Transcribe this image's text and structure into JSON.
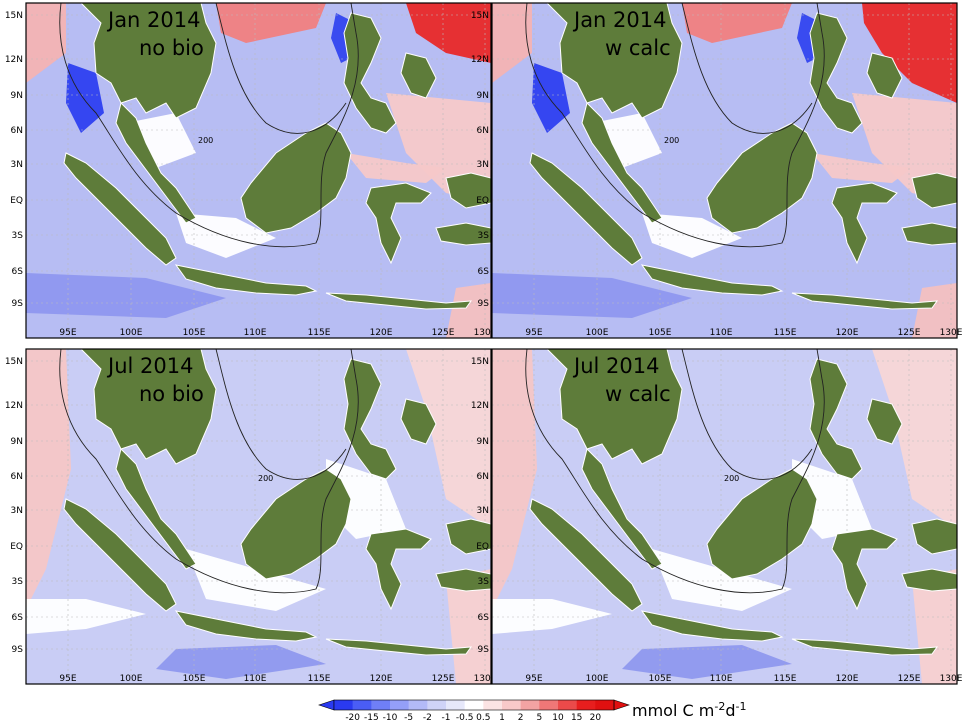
{
  "panels": [
    {
      "id": "jan-nobio",
      "month": "Jan 2014",
      "run": "no bio"
    },
    {
      "id": "jan-wcalc",
      "month": "Jan 2014",
      "run": "w calc"
    },
    {
      "id": "jul-nobio",
      "month": "Jul 2014",
      "run": "no bio"
    },
    {
      "id": "jul-wcalc",
      "month": "Jul 2014",
      "run": "w calc"
    }
  ],
  "lat_ticks": [
    "15N",
    "12N",
    "9N",
    "6N",
    "3N",
    "EQ",
    "3S",
    "6S",
    "9S"
  ],
  "lon_ticks": [
    "95E",
    "100E",
    "105E",
    "110E",
    "115E",
    "120E",
    "125E",
    "130E"
  ],
  "contour_label": "200",
  "colorbar": {
    "ticks": [
      "-20",
      "-15",
      "-10",
      "-5",
      "-2",
      "-1",
      "-0.5",
      "0.5",
      "1",
      "2",
      "5",
      "10",
      "15",
      "20"
    ],
    "unit_main": "mmol C m",
    "unit_exp1": "-2",
    "unit_mid": "d",
    "unit_exp2": "-1",
    "colors": [
      "#2a3af0",
      "#4a5df5",
      "#6f7ff7",
      "#949ff8",
      "#b3baf7",
      "#cfd3f7",
      "#e6e8fa",
      "#ffffff",
      "#fbe3e3",
      "#f8c9c9",
      "#f3a3a3",
      "#ef7777",
      "#eb4a4a",
      "#e81e1e",
      "#e01010"
    ]
  },
  "colors": {
    "land": "#5e7c3a",
    "ocean_neutral": "#ffffff",
    "negative": "#8a94ef",
    "positive": "#f4a7a7"
  }
}
